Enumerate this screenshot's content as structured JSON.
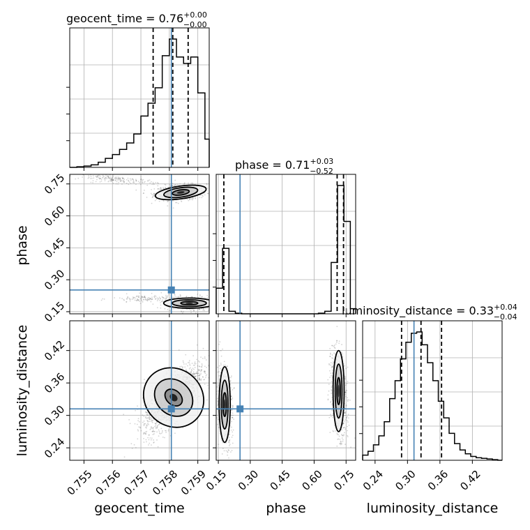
{
  "chart_data": {
    "type": "corner",
    "parameters": [
      "geocent_time",
      "phase",
      "luminosity_distance"
    ],
    "titles": {
      "geocent_time": {
        "name": "geocent_time",
        "value": "0.76",
        "plus": "+0.00",
        "minus": "−0.00"
      },
      "phase": {
        "name": "phase",
        "value": "0.71",
        "plus": "+0.03",
        "minus": "−0.52"
      },
      "luminosity_distance": {
        "name": "luminosity_distance",
        "value": "0.33",
        "plus": "+0.04",
        "minus": "−0.04"
      }
    },
    "truths": {
      "geocent_time": 0.75807,
      "phase": 0.252,
      "luminosity_distance": 0.312
    },
    "colors": {
      "truth": "#4682b4",
      "hist": "#000000",
      "grid": "#b0b0b0",
      "points": "#555555"
    },
    "axes": {
      "geocent_time": {
        "range": [
          0.7545,
          0.7594
        ],
        "ticks": [
          0.755,
          0.756,
          0.757,
          0.758,
          0.759
        ],
        "tick_labels": [
          "0.755",
          "0.756",
          "0.757",
          "0.758",
          "0.759"
        ]
      },
      "phase": {
        "range": [
          0.14,
          0.795
        ],
        "ticks": [
          0.15,
          0.3,
          0.45,
          0.6,
          0.75
        ],
        "tick_labels": [
          "0.15",
          "0.30",
          "0.45",
          "0.60",
          "0.75"
        ]
      },
      "luminosity_distance": {
        "range": [
          0.217,
          0.475
        ],
        "ticks": [
          0.24,
          0.3,
          0.36,
          0.42
        ],
        "tick_labels": [
          "0.24",
          "0.30",
          "0.36",
          "0.42"
        ]
      }
    },
    "histograms": {
      "geocent_time": {
        "edges": [
          0.7545,
          0.75475,
          0.755,
          0.75525,
          0.7555,
          0.75575,
          0.756,
          0.75625,
          0.7565,
          0.75675,
          0.757,
          0.75725,
          0.7575,
          0.75775,
          0.758,
          0.75825,
          0.7585,
          0.75875,
          0.759,
          0.75925,
          0.7594
        ],
        "values": [
          0,
          0.005,
          0.01,
          0.02,
          0.04,
          0.07,
          0.1,
          0.14,
          0.19,
          0.26,
          0.4,
          0.5,
          0.62,
          0.87,
          1.0,
          0.86,
          0.81,
          0.86,
          0.58,
          0.22
        ],
        "quantiles": [
          0.75743,
          0.75812,
          0.75866
        ]
      },
      "phase": {
        "edges": [
          0.14,
          0.17,
          0.2,
          0.23,
          0.26,
          0.29,
          0.32,
          0.35,
          0.38,
          0.41,
          0.44,
          0.47,
          0.5,
          0.53,
          0.56,
          0.59,
          0.62,
          0.65,
          0.68,
          0.71,
          0.74,
          0.77,
          0.795
        ],
        "values": [
          0.2,
          0.51,
          0.02,
          0.005,
          0,
          0,
          0,
          0,
          0,
          0,
          0,
          0,
          0,
          0,
          0,
          0,
          0.005,
          0.02,
          0.4,
          1.0,
          0.72,
          0.04
        ],
        "quantiles": [
          0.176,
          0.708,
          0.738
        ]
      },
      "luminosity_distance": {
        "edges": [
          0.217,
          0.227,
          0.237,
          0.247,
          0.257,
          0.267,
          0.277,
          0.287,
          0.297,
          0.307,
          0.317,
          0.327,
          0.337,
          0.347,
          0.357,
          0.367,
          0.377,
          0.387,
          0.397,
          0.407,
          0.417,
          0.427,
          0.437,
          0.447,
          0.457,
          0.467,
          0.475
        ],
        "values": [
          0.04,
          0.07,
          0.12,
          0.19,
          0.3,
          0.48,
          0.62,
          0.79,
          0.92,
          0.99,
          1.0,
          0.9,
          0.76,
          0.62,
          0.46,
          0.33,
          0.21,
          0.13,
          0.08,
          0.05,
          0.03,
          0.02,
          0.015,
          0.01,
          0.005,
          0
        ],
        "quantiles": [
          0.289,
          0.325,
          0.363
        ]
      }
    },
    "contour_panels": [
      {
        "x": "geocent_time",
        "y": "phase"
      },
      {
        "x": "geocent_time",
        "y": "luminosity_distance"
      },
      {
        "x": "phase",
        "y": "luminosity_distance"
      }
    ]
  }
}
